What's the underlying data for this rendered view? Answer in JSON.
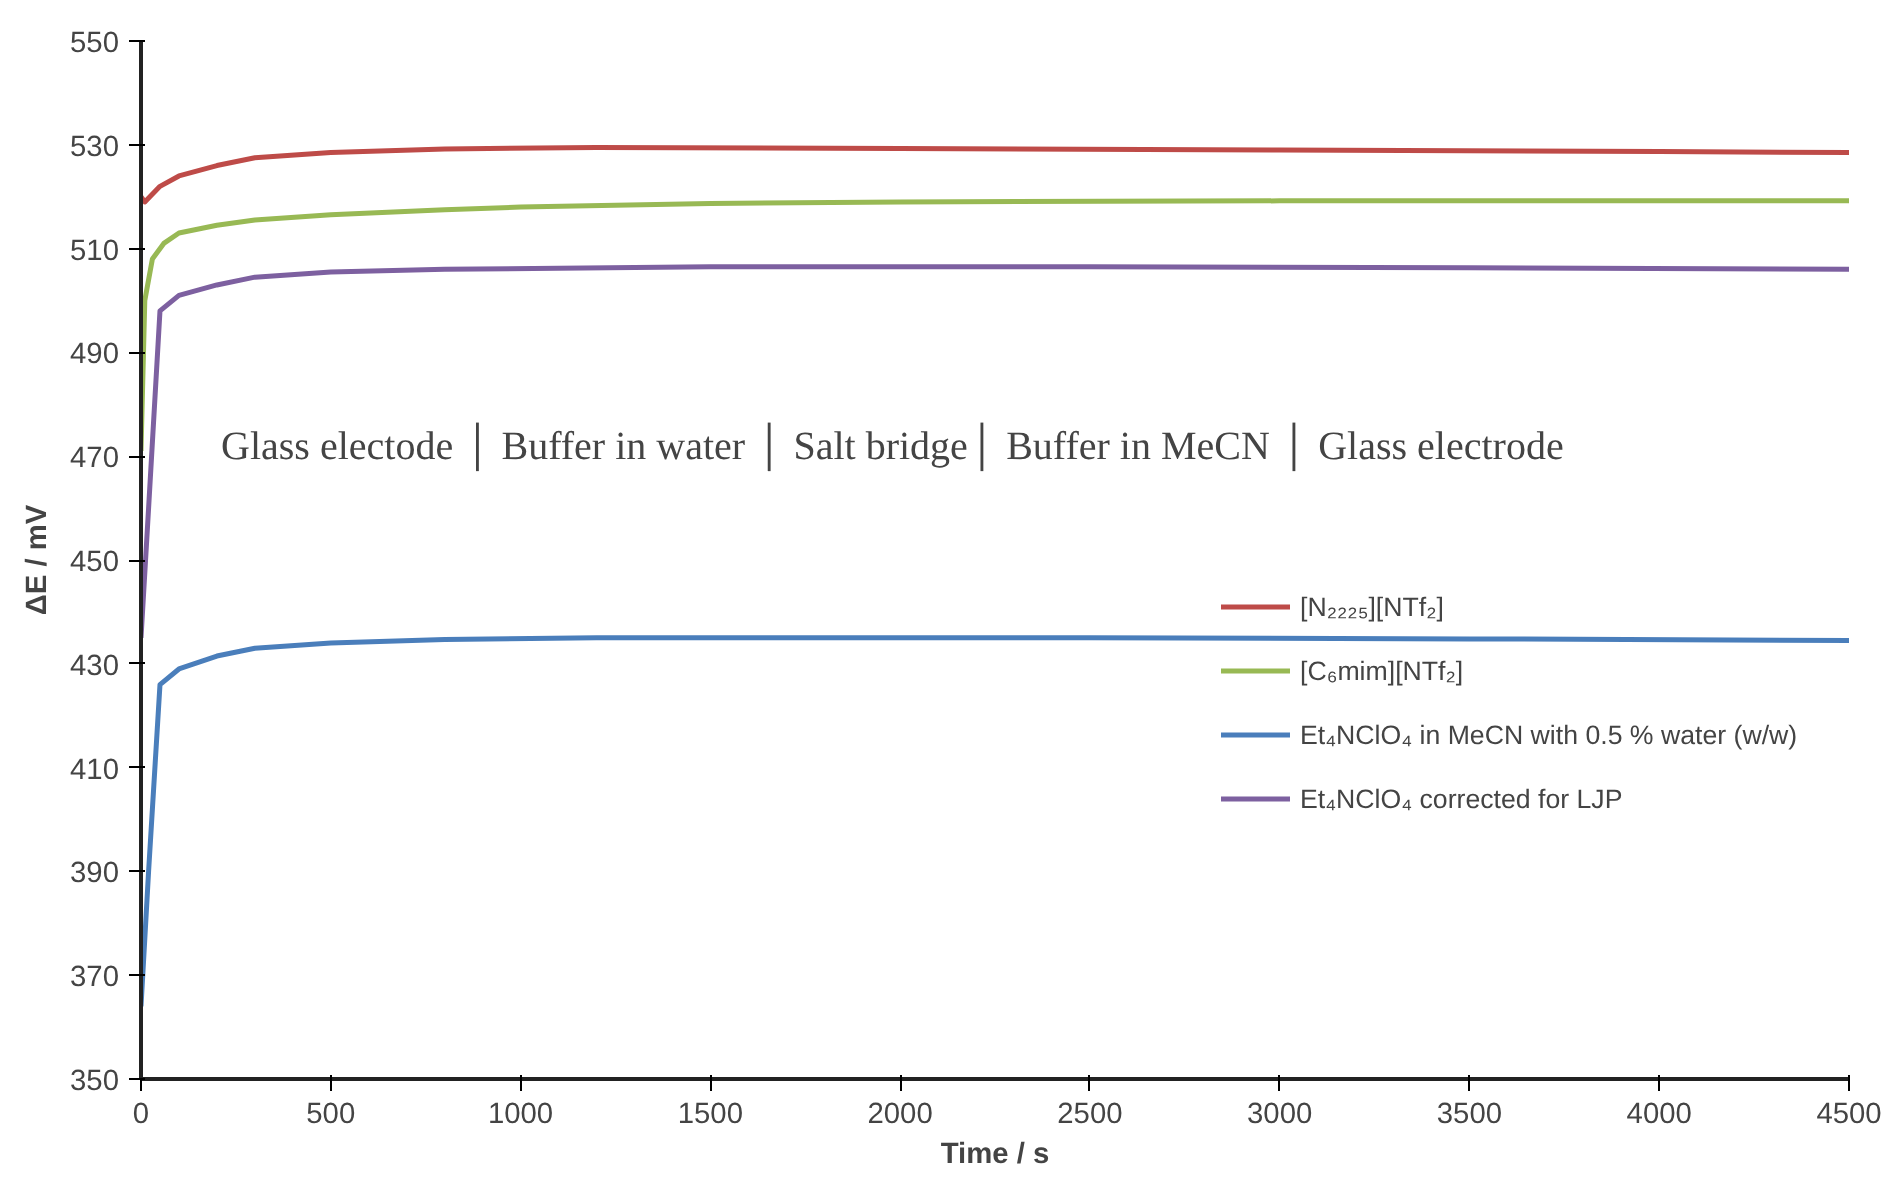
{
  "chart_data": {
    "type": "line",
    "xlabel": "Time / s",
    "ylabel": "ΔE / mV",
    "annotations": [
      "Glass electode │ Buffer in water │ Salt bridge│ Buffer in MeCN │ Glass electrode"
    ],
    "xlim": [
      0,
      4500
    ],
    "xticks": [
      0,
      500,
      1000,
      1500,
      2000,
      2500,
      3000,
      3500,
      4000,
      4500
    ],
    "ylim": [
      350,
      550
    ],
    "yticks": [
      350,
      370,
      390,
      410,
      430,
      450,
      470,
      490,
      510,
      530,
      550
    ],
    "grid": false,
    "legend": "right",
    "marker": "none",
    "line_style": "solid",
    "series": [
      {
        "name": "[N₂₂₂₅][NTf₂]",
        "color": "#be4b48",
        "x": [
          0,
          10,
          50,
          100,
          200,
          300,
          500,
          800,
          1200,
          2000,
          3000,
          4000,
          4500
        ],
        "values": [
          520,
          519,
          522,
          524,
          526,
          527.5,
          528.5,
          529.2,
          529.5,
          529.3,
          529,
          528.7,
          528.5
        ]
      },
      {
        "name": "[C₆mim][NTf₂]",
        "color": "#98b954",
        "x": [
          0,
          10,
          30,
          60,
          100,
          200,
          300,
          500,
          800,
          1000,
          1500,
          2000,
          3000,
          4500
        ],
        "values": [
          471,
          500,
          508,
          511,
          513,
          514.5,
          515.5,
          516.5,
          517.5,
          518,
          518.7,
          519,
          519.2,
          519.2
        ]
      },
      {
        "name": "Et₄NClO₄ in MeCN with 0.5 % water (w/w)",
        "color": "#4a7ebb",
        "x": [
          0,
          20,
          50,
          100,
          200,
          300,
          500,
          800,
          1200,
          2500,
          3500,
          4500
        ],
        "values": [
          364,
          390,
          426,
          429,
          431.5,
          433,
          434,
          434.7,
          435,
          435,
          434.8,
          434.5
        ]
      },
      {
        "name": "Et₄NClO₄ corrected for LJP",
        "color": "#7d60a0",
        "x": [
          0,
          20,
          50,
          100,
          200,
          300,
          500,
          800,
          1500,
          2500,
          3500,
          4500
        ],
        "values": [
          435,
          460,
          498,
          501,
          503,
          504.5,
          505.5,
          506,
          506.5,
          506.5,
          506.3,
          506
        ]
      }
    ]
  }
}
